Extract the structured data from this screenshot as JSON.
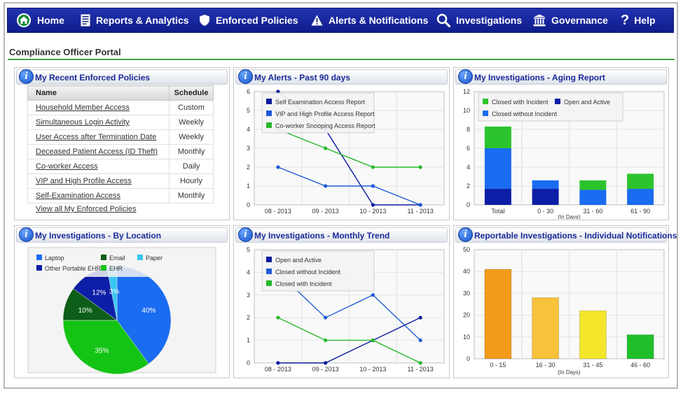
{
  "nav": {
    "items": [
      {
        "label": "Home",
        "icon": "home-icon"
      },
      {
        "label": "Reports & Analytics",
        "icon": "report-icon"
      },
      {
        "label": "Enforced Policies",
        "icon": "shield-icon"
      },
      {
        "label": "Alerts & Notifications",
        "icon": "warning-icon"
      },
      {
        "label": "Investigations",
        "icon": "magnifier-icon"
      },
      {
        "label": "Governance",
        "icon": "building-icon"
      },
      {
        "label": "Help",
        "icon": "question-icon"
      }
    ]
  },
  "portal": {
    "title": "Compliance Officer Portal"
  },
  "policies": {
    "title": "My Recent Enforced Policies",
    "col_name": "Name",
    "col_schedule": "Schedule",
    "rows": [
      {
        "name": "Household Member Access ",
        "schedule": "Custom"
      },
      {
        "name": "Simultaneous Login Activity",
        "schedule": "Weekly"
      },
      {
        "name": "User Access after Termination Date",
        "schedule": "Weekly"
      },
      {
        "name": "Deceased Patient Access (ID Theft)",
        "schedule": "Monthly"
      },
      {
        "name": "Co-worker Access",
        "schedule": "Daily"
      },
      {
        "name": "VIP and High Profile Access",
        "schedule": "Hourly"
      },
      {
        "name": "Self-Examination Access",
        "schedule": "Monthly"
      }
    ],
    "view_all": "View all My Enforced Policies"
  },
  "panels": {
    "alerts": "My Alerts - Past 90 days",
    "aging": "My Investigations - Aging Report",
    "location": "My Investigations - By Location",
    "monthly": "My Investigations - Monthly Trend",
    "reportable": "Reportable Investigations - Individual Notifications"
  },
  "chart_data": [
    {
      "id": "alerts",
      "type": "line",
      "categories": [
        "08 - 2013",
        "09 - 2013",
        "10 - 2013",
        "11 - 2013"
      ],
      "ylim": [
        0,
        6
      ],
      "yticks": [
        0,
        1,
        2,
        3,
        4,
        5,
        6
      ],
      "legend": "top-left",
      "grid": true,
      "series": [
        {
          "name": "Self Examination Access Report",
          "color": "#0a1a9c",
          "values": [
            6,
            4,
            0,
            0
          ]
        },
        {
          "name": "VIP and High Profile Access Report",
          "color": "#1e5ad6",
          "values": [
            2,
            1,
            1,
            0
          ]
        },
        {
          "name": "Co-worker Snooping Access Report",
          "color": "#27b82a",
          "values": [
            4,
            3,
            2,
            2
          ]
        }
      ]
    },
    {
      "id": "aging",
      "type": "bar",
      "stacked": true,
      "categories": [
        "Total",
        "0 - 30",
        "31 - 60",
        "61 - 90"
      ],
      "xlabel": "(In Days)",
      "ylim": [
        0,
        12
      ],
      "yticks": [
        0,
        2,
        4,
        6,
        8,
        10,
        12
      ],
      "legend": "top",
      "grid": true,
      "series": [
        {
          "name": "Open and Active",
          "color": "#0c1ea6",
          "values": [
            1.7,
            1.7,
            0,
            0
          ]
        },
        {
          "name": "Closed without Incident",
          "color": "#1a6cf0",
          "values": [
            4.3,
            0.9,
            1.6,
            1.7
          ]
        },
        {
          "name": "Closed with Incident",
          "color": "#2cc42c",
          "values": [
            2.3,
            0,
            1.0,
            1.6
          ]
        }
      ],
      "legend_order": [
        "Closed with Incident",
        "Open and Active",
        "Closed without Incident"
      ]
    },
    {
      "id": "location",
      "type": "pie",
      "legend": "top-left",
      "series": [
        {
          "name": "Laptop",
          "color": "#1a6cf0",
          "value": 40,
          "label": "40%"
        },
        {
          "name": "EHR",
          "color": "#14c414",
          "value": 35,
          "label": "35%"
        },
        {
          "name": "Email",
          "color": "#0c5e18",
          "value": 10,
          "label": "10%"
        },
        {
          "name": "Other Portable EHR",
          "color": "#0c1ea6",
          "value": 12,
          "label": "12%"
        },
        {
          "name": "Paper",
          "color": "#38c6f2",
          "value": 3,
          "label": "3%"
        }
      ],
      "legend_order": [
        "Laptop",
        "Email",
        "Paper",
        "Other Portable EHR",
        "EHR"
      ]
    },
    {
      "id": "monthly",
      "type": "line",
      "categories": [
        "08 - 2013",
        "09 - 2013",
        "10 - 2013",
        "11 - 2013"
      ],
      "ylim": [
        0,
        5
      ],
      "yticks": [
        0,
        1,
        2,
        3,
        4,
        5
      ],
      "legend": "top-left",
      "grid": true,
      "series": [
        {
          "name": "Open and Active",
          "color": "#0a1a9c",
          "values": [
            0,
            0,
            1,
            2
          ]
        },
        {
          "name": "Closed without Incident",
          "color": "#1e5ad6",
          "values": [
            4,
            2,
            3,
            1
          ]
        },
        {
          "name": "Closed with Incident",
          "color": "#27b82a",
          "values": [
            2,
            1,
            1,
            0
          ]
        }
      ]
    },
    {
      "id": "reportable",
      "type": "bar",
      "categories": [
        "0 - 15",
        "16 - 30",
        "31 - 45",
        "46 - 60"
      ],
      "xlabel": "(In Days)",
      "ylim": [
        0,
        50
      ],
      "yticks": [
        0,
        10,
        20,
        30,
        40,
        50
      ],
      "grid": true,
      "values": [
        41,
        28,
        22,
        11
      ],
      "colors": [
        "#f39a1a",
        "#f8c23a",
        "#f4e62a",
        "#1fbf2a"
      ]
    }
  ]
}
